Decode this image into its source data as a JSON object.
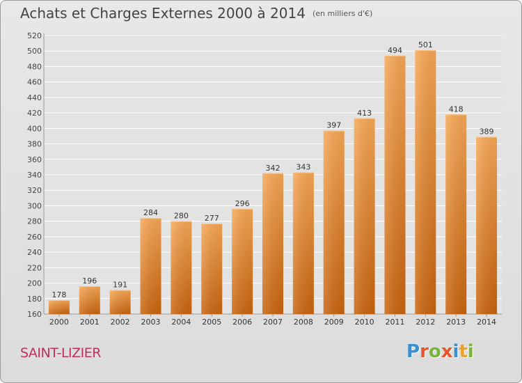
{
  "header": {
    "title": "Achats et Charges Externes 2000 à 2014",
    "subtitle": "(en milliers d'€)"
  },
  "footer": {
    "commune": "SAINT-LIZIER",
    "logo_letters": [
      "P",
      "r",
      "o",
      "x",
      "i",
      "t",
      "i"
    ],
    "logo_colors": [
      "#3a8fd0",
      "#e8552b",
      "#7ab23a",
      "#e8552b",
      "#3a8fd0",
      "#e8a030",
      "#7ab23a"
    ]
  },
  "colors": {
    "bar_top": "#f7a856",
    "bar_bottom": "#c9640e",
    "grid": "#ffffff",
    "plot_bg": "#e3e3e3"
  },
  "chart_data": {
    "type": "bar",
    "title": "Achats et Charges Externes 2000 à 2014",
    "subtitle": "(en milliers d'€)",
    "xlabel": "",
    "ylabel": "",
    "categories": [
      "2000",
      "2001",
      "2002",
      "2003",
      "2004",
      "2005",
      "2006",
      "2007",
      "2008",
      "2009",
      "2010",
      "2011",
      "2012",
      "2013",
      "2014"
    ],
    "values": [
      178,
      196,
      191,
      284,
      280,
      277,
      296,
      342,
      343,
      397,
      413,
      494,
      501,
      418,
      389
    ],
    "ylim": [
      160,
      520
    ],
    "yticks": [
      160,
      180,
      200,
      220,
      240,
      260,
      280,
      300,
      320,
      340,
      360,
      380,
      400,
      420,
      440,
      460,
      480,
      500,
      520
    ],
    "grid": true,
    "legend": "none"
  }
}
